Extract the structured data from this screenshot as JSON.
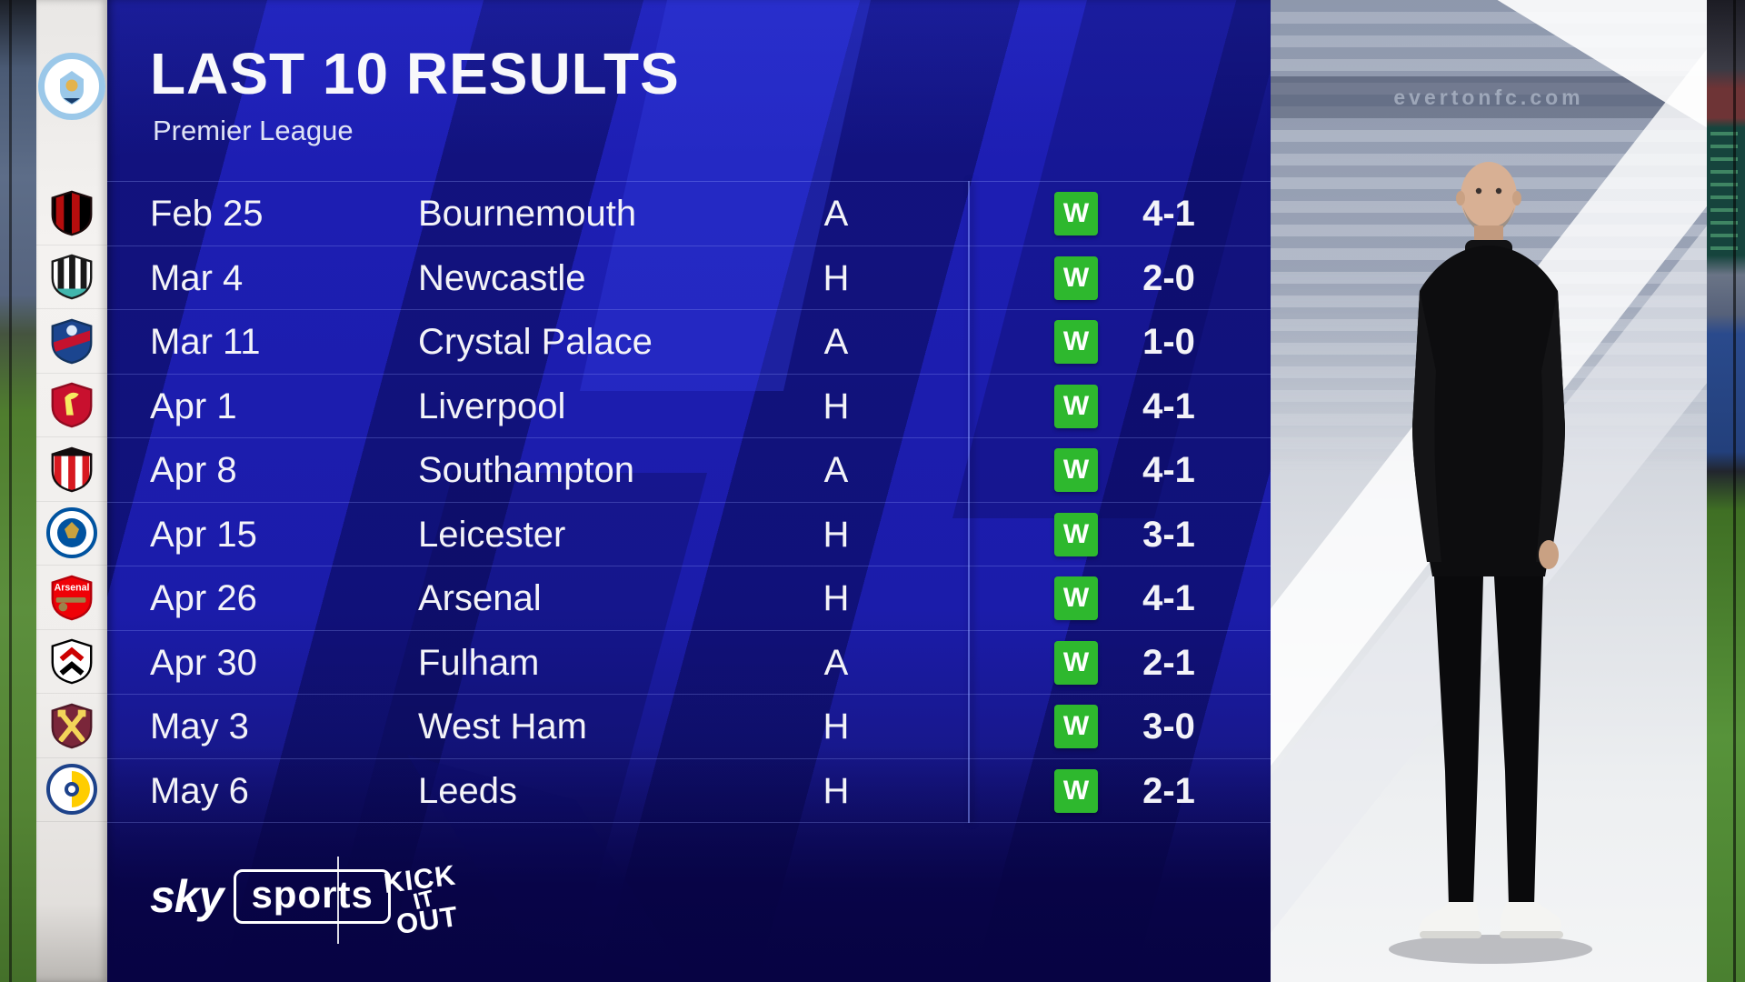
{
  "header": {
    "title": "LAST 10 RESULTS",
    "subtitle": "Premier League",
    "club": "Manchester City"
  },
  "table": {
    "rows": [
      {
        "date": "Feb 25",
        "opponent": "Bournemouth",
        "team_id": "bournemouth",
        "venue": "A",
        "result": "W",
        "score": "4-1"
      },
      {
        "date": "Mar 4",
        "opponent": "Newcastle",
        "team_id": "newcastle",
        "venue": "H",
        "result": "W",
        "score": "2-0"
      },
      {
        "date": "Mar 11",
        "opponent": "Crystal Palace",
        "team_id": "crystal-palace",
        "venue": "A",
        "result": "W",
        "score": "1-0"
      },
      {
        "date": "Apr 1",
        "opponent": "Liverpool",
        "team_id": "liverpool",
        "venue": "H",
        "result": "W",
        "score": "4-1"
      },
      {
        "date": "Apr 8",
        "opponent": "Southampton",
        "team_id": "southampton",
        "venue": "A",
        "result": "W",
        "score": "4-1"
      },
      {
        "date": "Apr 15",
        "opponent": "Leicester",
        "team_id": "leicester",
        "venue": "H",
        "result": "W",
        "score": "3-1"
      },
      {
        "date": "Apr 26",
        "opponent": "Arsenal",
        "team_id": "arsenal",
        "venue": "H",
        "result": "W",
        "score": "4-1"
      },
      {
        "date": "Apr 30",
        "opponent": "Fulham",
        "team_id": "fulham",
        "venue": "A",
        "result": "W",
        "score": "2-1"
      },
      {
        "date": "May 3",
        "opponent": "West Ham",
        "team_id": "west-ham",
        "venue": "H",
        "result": "W",
        "score": "3-0"
      },
      {
        "date": "May 6",
        "opponent": "Leeds",
        "team_id": "leeds",
        "venue": "H",
        "result": "W",
        "score": "2-1"
      }
    ]
  },
  "footer": {
    "sky_brand": {
      "sky": "sky",
      "sports": "sports"
    },
    "kick_it_out": [
      "KICK",
      "IT",
      "OUT"
    ]
  },
  "right_panel": {
    "ad_text": "evertonfc.com"
  },
  "colors": {
    "win_green": "#2eb82e",
    "panel_blue": "#1e1fb6",
    "panel_dark_band": "#15157c",
    "bottom_navy": "#070343"
  },
  "teams": {
    "man-city": {
      "name": "Manchester City",
      "colors": [
        "#9bc8e9",
        "#ffffff",
        "#163c6b",
        "#e4b34c"
      ]
    },
    "bournemouth": {
      "name": "Bournemouth",
      "colors": [
        "#000000",
        "#b50d0d"
      ]
    },
    "newcastle": {
      "name": "Newcastle",
      "colors": [
        "#ffffff",
        "#1a1a1a",
        "#41b6ad"
      ]
    },
    "crystal-palace": {
      "name": "Crystal Palace",
      "colors": [
        "#1b458f",
        "#c4122e",
        "#13335f"
      ]
    },
    "liverpool": {
      "name": "Liverpool",
      "colors": [
        "#c8102e",
        "#f6eb61",
        "#8f0b20"
      ]
    },
    "southampton": {
      "name": "Southampton",
      "colors": [
        "#ffffff",
        "#d71920",
        "#130c0e"
      ]
    },
    "leicester": {
      "name": "Leicester",
      "colors": [
        "#0053a0",
        "#ffffff",
        "#c9a23f"
      ]
    },
    "arsenal": {
      "name": "Arsenal",
      "colors": [
        "#ef0107",
        "#9c824a",
        "#b5000a"
      ]
    },
    "fulham": {
      "name": "Fulham",
      "colors": [
        "#ffffff",
        "#000000",
        "#cc0000"
      ]
    },
    "west-ham": {
      "name": "West Ham",
      "colors": [
        "#7a263a",
        "#f3d459",
        "#4f1827"
      ]
    },
    "leeds": {
      "name": "Leeds",
      "colors": [
        "#ffffff",
        "#1d428a",
        "#ffcd00"
      ]
    }
  }
}
